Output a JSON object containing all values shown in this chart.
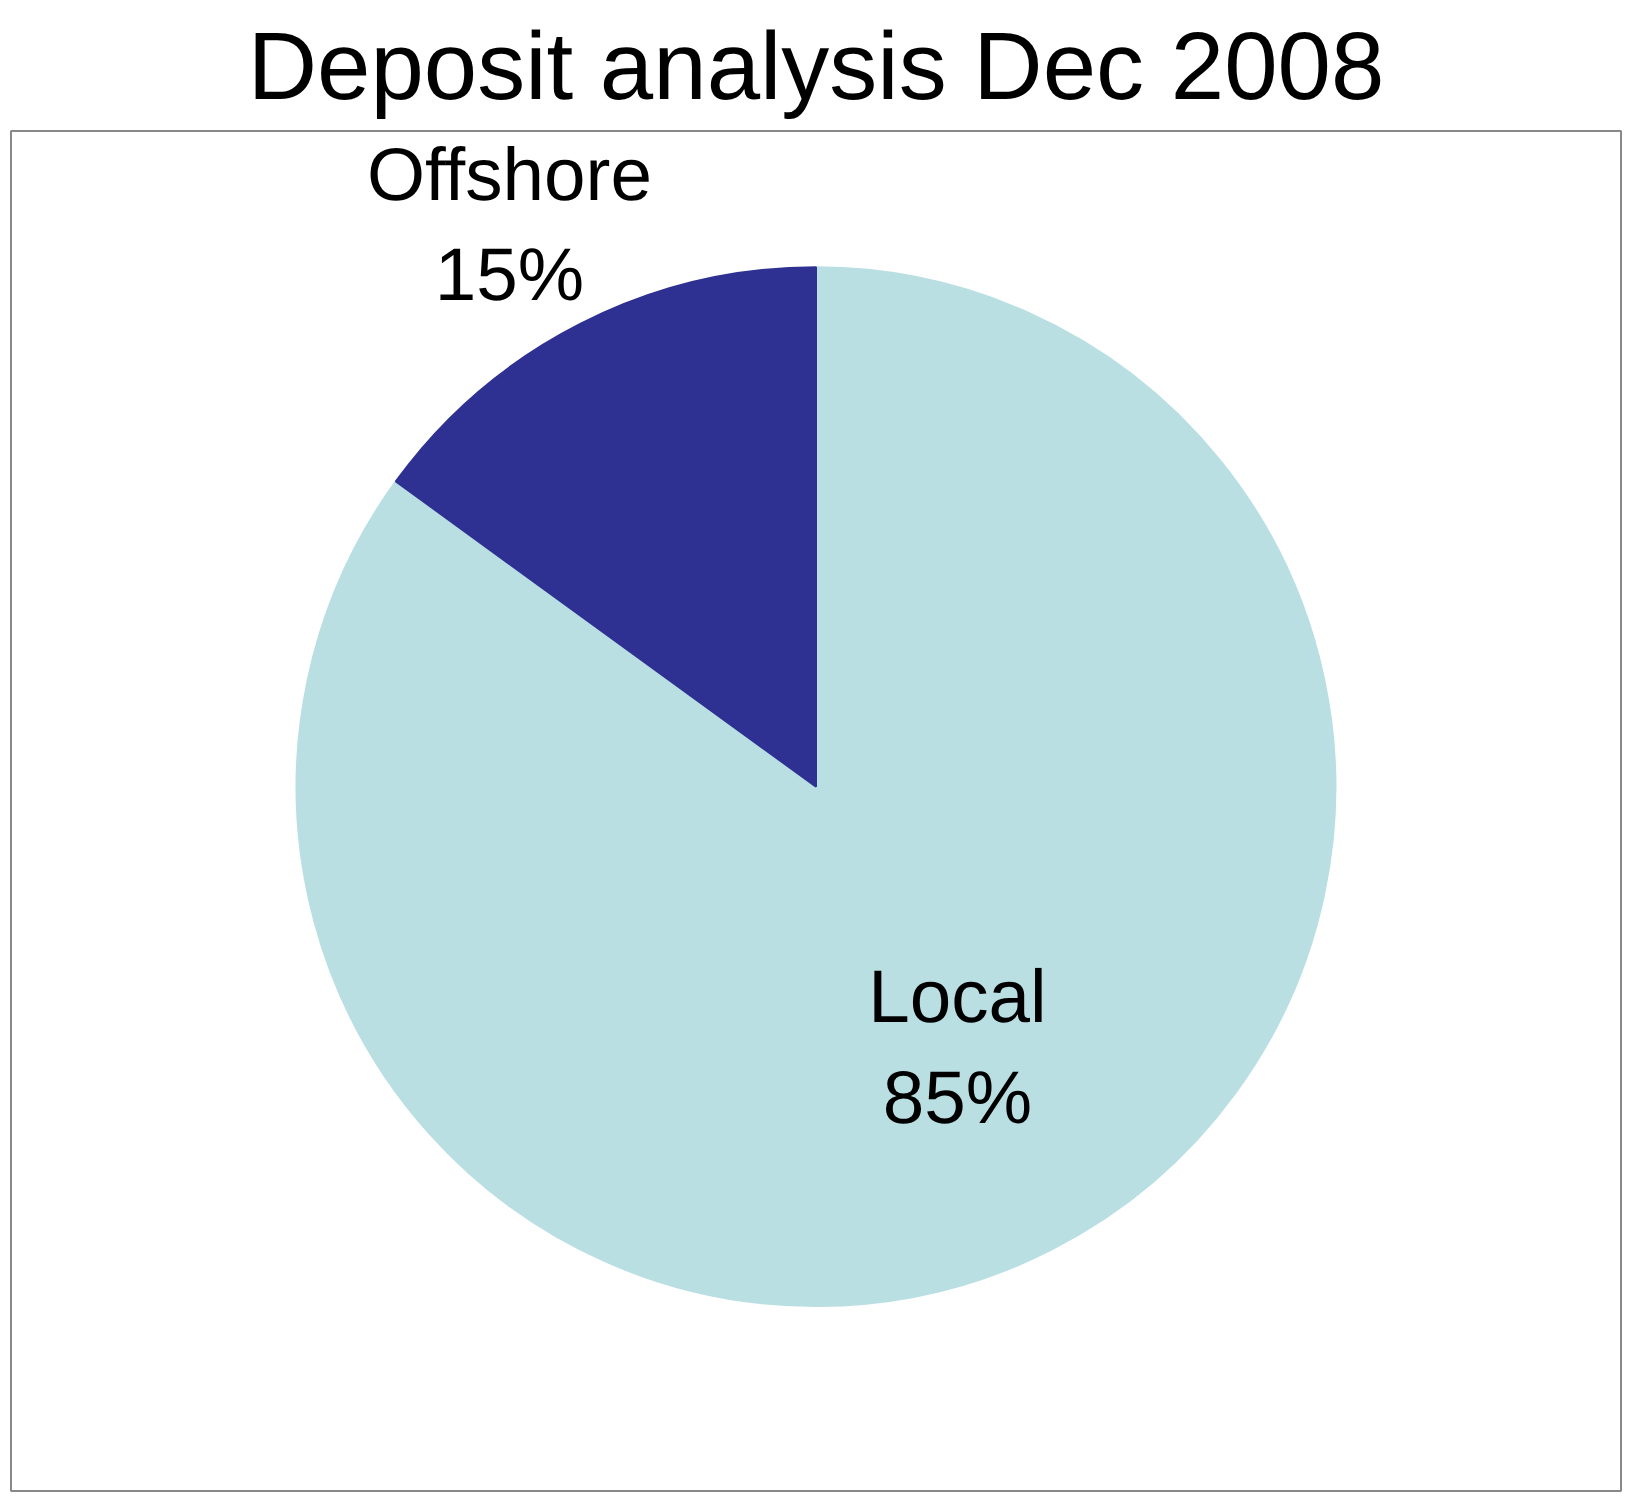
{
  "chart_data": {
    "type": "pie",
    "title": "Deposit analysis Dec 2008",
    "categories": [
      "Local",
      "Offshore"
    ],
    "values": [
      85,
      15
    ],
    "colors": [
      "#b9dfe3",
      "#2e3192"
    ],
    "value_labels": [
      "85%",
      "15%"
    ]
  }
}
